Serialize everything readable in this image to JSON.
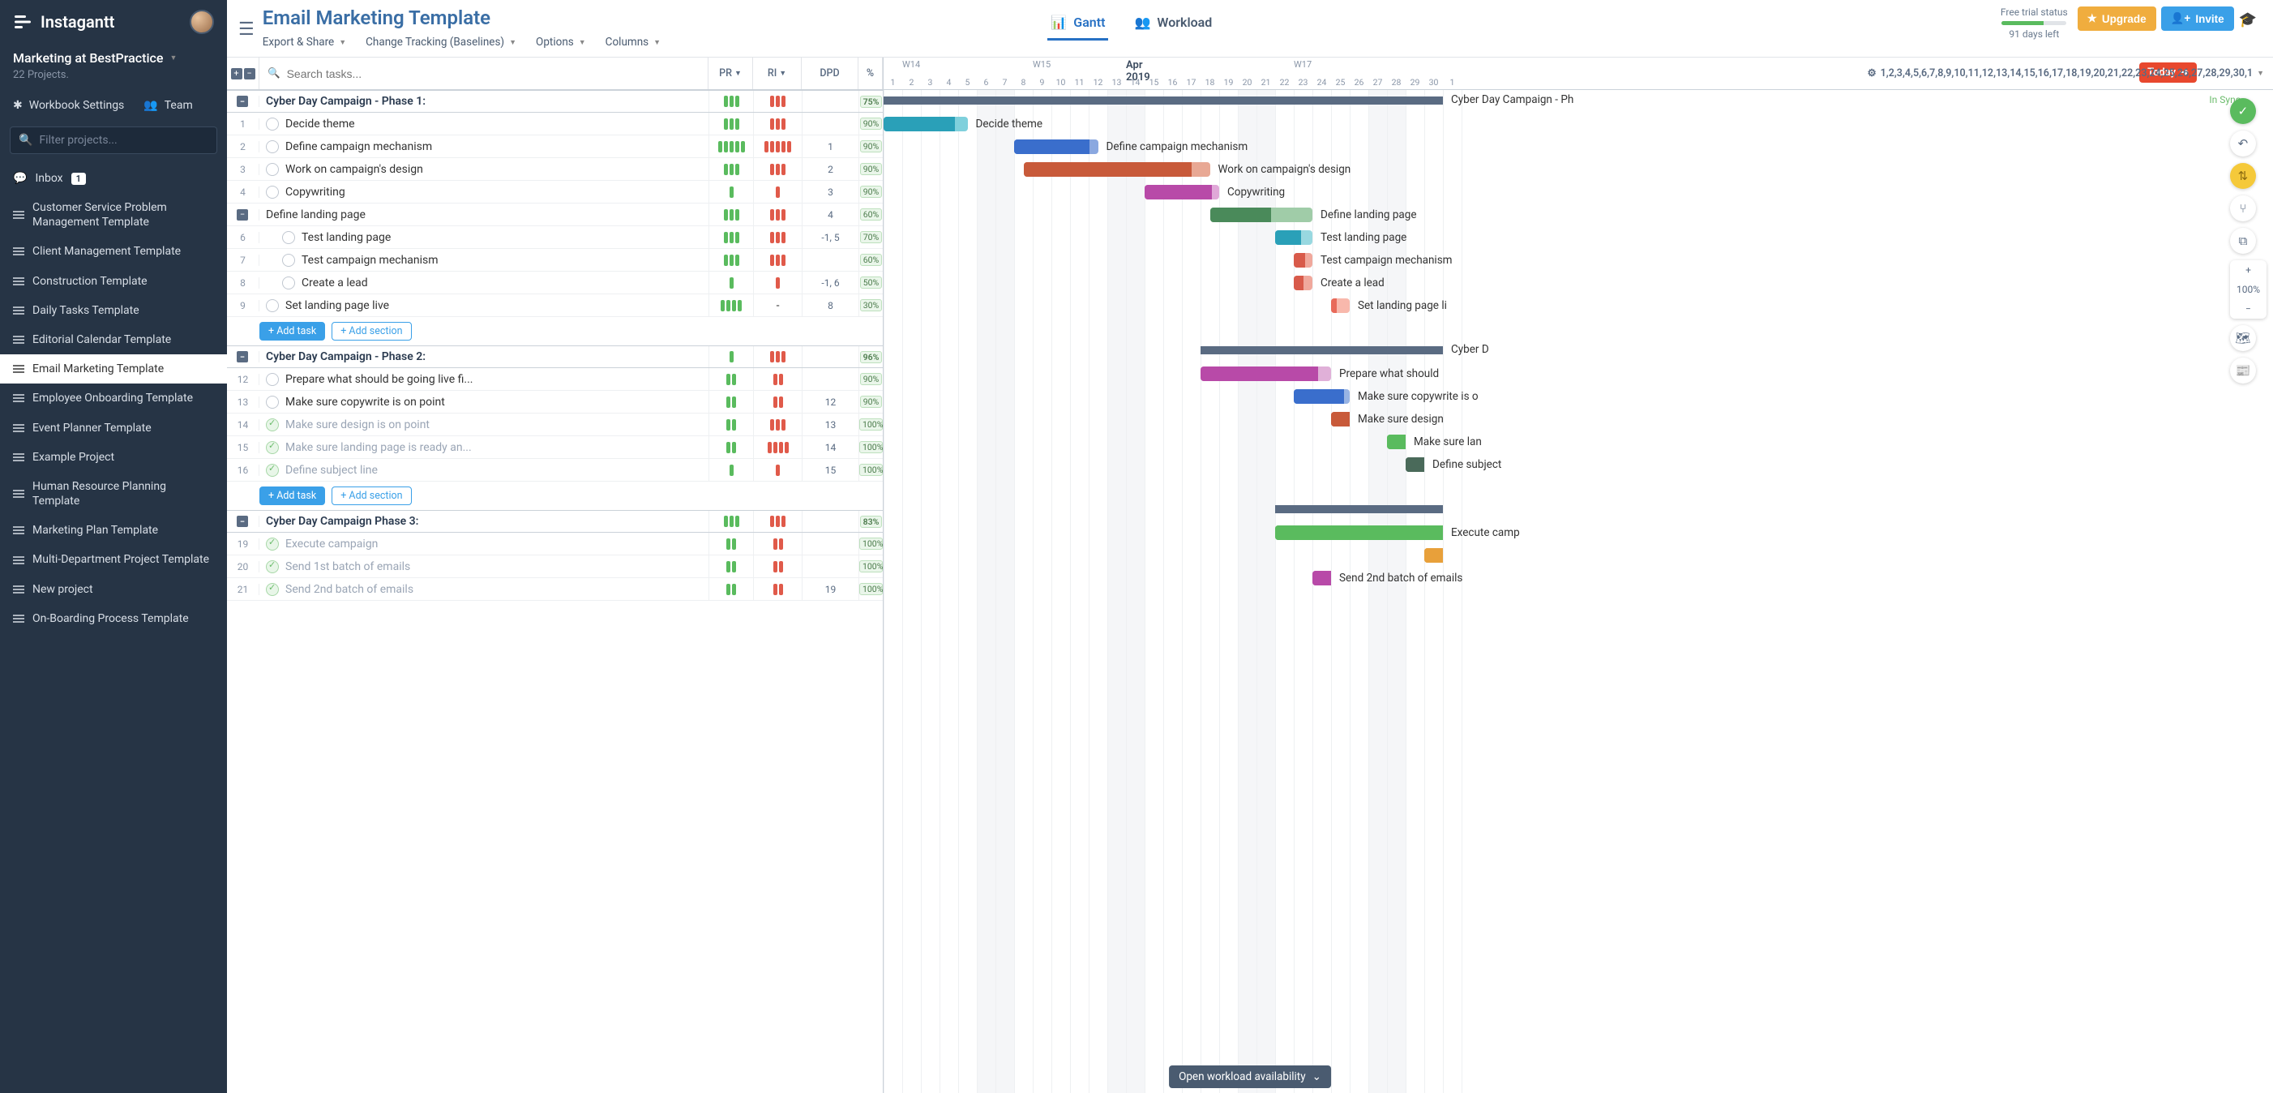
{
  "brand": "Instagantt",
  "workspace": {
    "name": "Marketing at BestPractice",
    "subtitle": "22 Projects."
  },
  "sidebar": {
    "settings": "Workbook Settings",
    "team": "Team",
    "filter_placeholder": "Filter projects...",
    "inbox": "Inbox",
    "inbox_count": "1",
    "projects": [
      "Customer Service Problem Management Template",
      "Client Management Template",
      "Construction Template",
      "Daily Tasks Template",
      "Editorial Calendar Template",
      "Email Marketing Template",
      "Employee Onboarding Template",
      "Event Planner Template",
      "Example Project",
      "Human Resource Planning Template",
      "Marketing Plan Template",
      "Multi-Department Project Template",
      "New project",
      "On-Boarding Process Template"
    ],
    "active_index": 5
  },
  "header": {
    "title": "Email Marketing Template",
    "menu": [
      "Export & Share",
      "Change Tracking (Baselines)",
      "Options",
      "Columns"
    ],
    "tabs": {
      "gantt": "Gantt",
      "workload": "Workload"
    },
    "trial": {
      "label": "Free trial status",
      "days": "91 days left",
      "pct": 65
    },
    "upgrade": "Upgrade",
    "invite": "Invite"
  },
  "columns": {
    "search": "Search tasks...",
    "pr": "PR",
    "ri": "RI",
    "dpd": "DPD",
    "pct": "%"
  },
  "colors": {
    "green": "#5abb5e",
    "red": "#e05a4a"
  },
  "add": {
    "task": "Add task",
    "section": "Add section"
  },
  "tasks": [
    {
      "type": "section",
      "name": "Cyber Day Campaign - Phase 1:",
      "pr": 3,
      "ri": 3,
      "dpd": "",
      "pct": "75%"
    },
    {
      "type": "task",
      "num": "1",
      "name": "Decide theme",
      "pr": 3,
      "ri": 3,
      "dpd": "",
      "pct": "90%"
    },
    {
      "type": "task",
      "num": "2",
      "name": "Define campaign mechanism",
      "pr": 5,
      "ri": 5,
      "dpd": "1",
      "pct": "90%"
    },
    {
      "type": "task",
      "num": "3",
      "name": "Work on campaign's design",
      "pr": 3,
      "ri": 3,
      "dpd": "2",
      "pct": "90%"
    },
    {
      "type": "task",
      "num": "4",
      "name": "Copywriting",
      "pr": 1,
      "ri": 1,
      "dpd": "3",
      "pct": "90%"
    },
    {
      "type": "section-sub",
      "name": "Define landing page",
      "pr": 3,
      "ri": 3,
      "dpd": "4",
      "pct": "60%"
    },
    {
      "type": "task",
      "num": "6",
      "indent": 1,
      "name": "Test landing page",
      "pr": 3,
      "ri": 3,
      "dpd": "-1, 5",
      "pct": "70%"
    },
    {
      "type": "task",
      "num": "7",
      "indent": 1,
      "name": "Test campaign mechanism",
      "pr": 3,
      "ri": 3,
      "dpd": "",
      "pct": "60%"
    },
    {
      "type": "task",
      "num": "8",
      "indent": 1,
      "name": "Create a lead",
      "pr": 1,
      "ri": 1,
      "dpd": "-1, 6",
      "pct": "50%"
    },
    {
      "type": "task",
      "num": "9",
      "name": "Set landing page live",
      "pr": 4,
      "ri": 0,
      "dpd": "8",
      "pct": "30%",
      "dpd_dash": "-"
    },
    {
      "type": "add"
    },
    {
      "type": "section",
      "name": "Cyber Day Campaign - Phase 2:",
      "pr": 1,
      "ri": 3,
      "dpd": "",
      "pct": "96%"
    },
    {
      "type": "task",
      "num": "12",
      "name": "Prepare what should be going live fi...",
      "pr": 2,
      "ri": 2,
      "dpd": "",
      "pct": "90%"
    },
    {
      "type": "task",
      "num": "13",
      "name": "Make sure copywrite is on point",
      "pr": 2,
      "ri": 2,
      "dpd": "12",
      "pct": "90%"
    },
    {
      "type": "task",
      "num": "14",
      "done": true,
      "name": "Make sure design is on point",
      "pr": 2,
      "ri": 3,
      "dpd": "13",
      "pct": "100%"
    },
    {
      "type": "task",
      "num": "15",
      "done": true,
      "name": "Make sure landing page is ready an...",
      "pr": 2,
      "ri": 4,
      "dpd": "14",
      "pct": "100%"
    },
    {
      "type": "task",
      "num": "16",
      "done": true,
      "name": "Define subject line",
      "pr": 1,
      "ri": 1,
      "dpd": "15",
      "pct": "100%"
    },
    {
      "type": "add"
    },
    {
      "type": "section",
      "name": "Cyber Day Campaign Phase 3:",
      "pr": 3,
      "ri": 3,
      "dpd": "",
      "pct": "83%"
    },
    {
      "type": "task",
      "num": "19",
      "done": true,
      "name": "Execute campaign",
      "pr": 2,
      "ri": 2,
      "dpd": "",
      "pct": "100%"
    },
    {
      "type": "task",
      "num": "20",
      "done": true,
      "name": "Send 1st batch of emails",
      "pr": 2,
      "ri": 2,
      "dpd": "",
      "pct": "100%"
    },
    {
      "type": "task",
      "num": "21",
      "done": true,
      "name": "Send 2nd batch of emails",
      "pr": 2,
      "ri": 2,
      "dpd": "19",
      "pct": "100%"
    }
  ],
  "gantt": {
    "today": "Today",
    "days": [
      1,
      2,
      3,
      4,
      5,
      6,
      7,
      8,
      9,
      10,
      11,
      12,
      13,
      14,
      15,
      16,
      17,
      18,
      19,
      20,
      21,
      22,
      23,
      24,
      25,
      26,
      27,
      28,
      29,
      30,
      1
    ],
    "sync": "In Sync",
    "day_width": 23,
    "start_day": 1,
    "weeks": [
      {
        "label": "W14",
        "day": 2
      },
      {
        "label": "W15",
        "day": 9
      },
      {
        "label": "W17",
        "day": 23
      }
    ],
    "month": {
      "label": "Apr 2019",
      "day": 14
    },
    "weekends": [
      [
        6,
        7
      ],
      [
        13,
        14
      ],
      [
        20,
        21
      ],
      [
        27,
        28
      ]
    ],
    "bars": [
      {
        "row": 0,
        "type": "summary",
        "start": 1,
        "end": 31,
        "label": "Cyber Day Campaign - Ph"
      },
      {
        "row": 1,
        "start": 1,
        "end": 5.5,
        "fill": 0.85,
        "color": "#2aa0b8",
        "light": "#7fd0dc",
        "label": "Decide theme"
      },
      {
        "row": 2,
        "start": 8,
        "end": 12.5,
        "fill": 0.9,
        "color": "#3a6ecc",
        "light": "#8aa8e0",
        "label": "Define campaign mechanism"
      },
      {
        "row": 3,
        "start": 8.5,
        "end": 18.5,
        "fill": 0.9,
        "color": "#c85a3a",
        "light": "#e8a894",
        "label": "Work on campaign's design"
      },
      {
        "row": 4,
        "start": 15,
        "end": 19,
        "fill": 0.9,
        "color": "#b84aa8",
        "light": "#e0a8d8",
        "label": "Copywriting"
      },
      {
        "row": 5,
        "start": 18.5,
        "end": 24,
        "fill": 0.6,
        "color": "#4a8a5a",
        "light": "#a0cca8",
        "label": "Define landing page"
      },
      {
        "row": 6,
        "start": 22,
        "end": 24,
        "fill": 0.7,
        "color": "#2aa0b8",
        "light": "#98d8e0",
        "label": "Test landing page"
      },
      {
        "row": 7,
        "start": 23,
        "end": 24,
        "fill": 0.6,
        "color": "#d85a4a",
        "light": "#f0a89c",
        "label": "Test campaign mechanism"
      },
      {
        "row": 8,
        "start": 23,
        "end": 24,
        "fill": 0.5,
        "color": "#d85a4a",
        "light": "#f0a89c",
        "label": "Create a lead"
      },
      {
        "row": 9,
        "start": 25,
        "end": 26,
        "fill": 0.3,
        "color": "#e86a5a",
        "light": "#f8b8ac",
        "label": "Set landing page li"
      },
      {
        "row": 11,
        "type": "summary",
        "start": 18,
        "end": 31,
        "label": "Cyber D"
      },
      {
        "row": 12,
        "start": 18,
        "end": 25,
        "fill": 0.9,
        "color": "#b84aa8",
        "light": "#e0b0d8",
        "label": "Prepare what should"
      },
      {
        "row": 13,
        "start": 23,
        "end": 26,
        "fill": 0.9,
        "color": "#3a6ecc",
        "light": "#98b4e4",
        "label": "Make sure copywrite is o"
      },
      {
        "row": 14,
        "start": 25,
        "end": 26,
        "fill": 1,
        "color": "#c85a3a",
        "light": "#c85a3a",
        "label": "Make sure design"
      },
      {
        "row": 15,
        "start": 28,
        "end": 29,
        "fill": 1,
        "color": "#5abb5e",
        "light": "#5abb5e",
        "label": "Make sure lan"
      },
      {
        "row": 16,
        "start": 29,
        "end": 30,
        "fill": 1,
        "color": "#4a6a5a",
        "light": "#4a6a5a",
        "label": "Define subject"
      },
      {
        "row": 18,
        "type": "summary",
        "start": 22,
        "end": 31,
        "label": ""
      },
      {
        "row": 19,
        "start": 22,
        "end": 31,
        "fill": 1,
        "color": "#5abb5e",
        "light": "#5abb5e",
        "label": "Execute camp"
      },
      {
        "row": 20,
        "start": 30,
        "end": 31,
        "fill": 1,
        "color": "#e8a03a",
        "light": "#e8a03a",
        "label": ""
      },
      {
        "row": 21,
        "start": 24,
        "end": 25,
        "fill": 1,
        "color": "#b84aa8",
        "light": "#b84aa8",
        "label": "Send 2nd batch of emails"
      }
    ]
  },
  "bottom": "Open workload availability",
  "zoom": "100%"
}
